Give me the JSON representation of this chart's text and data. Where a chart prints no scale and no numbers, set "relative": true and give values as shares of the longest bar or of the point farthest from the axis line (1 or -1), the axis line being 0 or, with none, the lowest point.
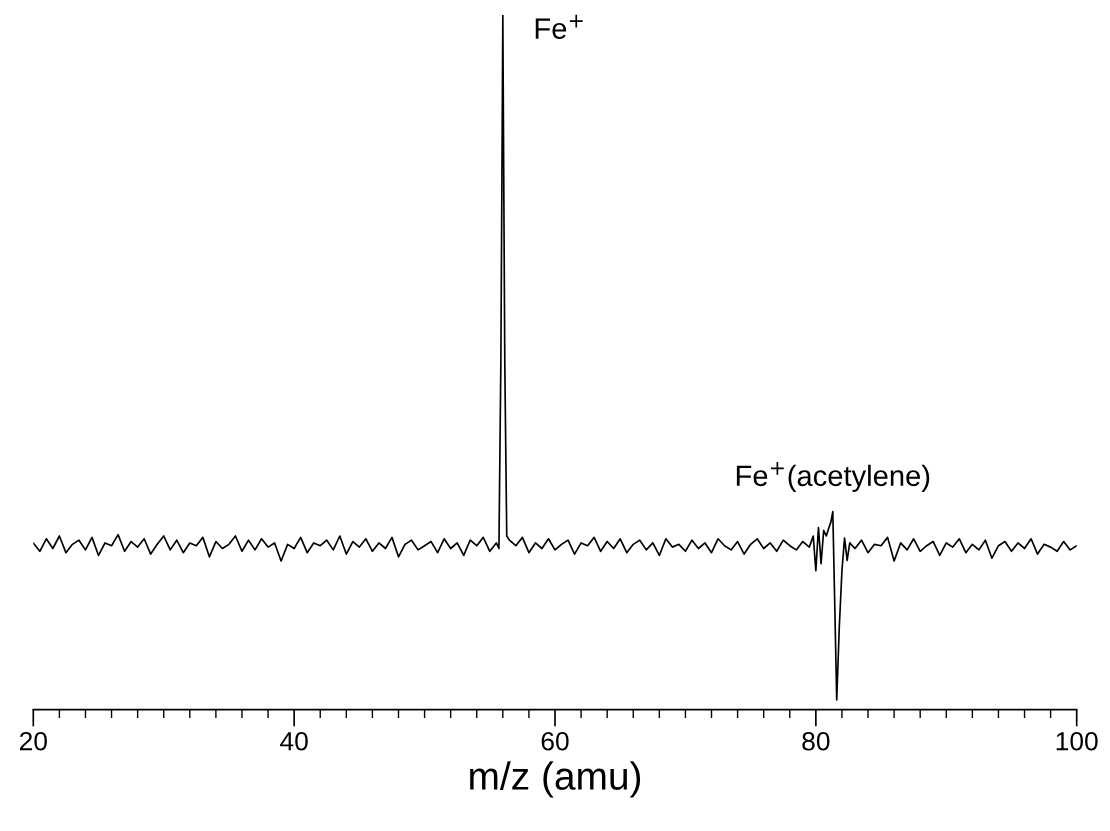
{
  "chart_data": {
    "type": "line",
    "relative": true,
    "xlabel": "m/z (amu)",
    "xlim": [
      20,
      100
    ],
    "xticks": [
      20,
      {
        "value": 22,
        "label": null
      },
      {
        "value": 24,
        "label": null
      },
      {
        "value": 26,
        "label": null
      },
      {
        "value": 28,
        "label": null
      },
      {
        "value": 30,
        "label": null
      },
      {
        "value": 32,
        "label": null
      },
      {
        "value": 34,
        "label": null
      },
      {
        "value": 36,
        "label": null
      },
      {
        "value": 38,
        "label": null
      },
      40,
      {
        "value": 42,
        "label": null
      },
      {
        "value": 44,
        "label": null
      },
      {
        "value": 46,
        "label": null
      },
      {
        "value": 48,
        "label": null
      },
      {
        "value": 50,
        "label": null
      },
      {
        "value": 52,
        "label": null
      },
      {
        "value": 54,
        "label": null
      },
      {
        "value": 56,
        "label": null
      },
      {
        "value": 58,
        "label": null
      },
      60,
      {
        "value": 62,
        "label": null
      },
      {
        "value": 64,
        "label": null
      },
      {
        "value": 66,
        "label": null
      },
      {
        "value": 68,
        "label": null
      },
      {
        "value": 70,
        "label": null
      },
      {
        "value": 72,
        "label": null
      },
      {
        "value": 74,
        "label": null
      },
      {
        "value": 76,
        "label": null
      },
      {
        "value": 78,
        "label": null
      },
      80,
      {
        "value": 82,
        "label": null
      },
      {
        "value": 84,
        "label": null
      },
      {
        "value": 86,
        "label": null
      },
      {
        "value": 88,
        "label": null
      },
      {
        "value": 90,
        "label": null
      },
      {
        "value": 92,
        "label": null
      },
      {
        "value": 94,
        "label": null
      },
      {
        "value": 96,
        "label": null
      },
      {
        "value": 98,
        "label": null
      },
      100
    ],
    "grid": false,
    "marker": "none",
    "line_style": "solid",
    "annotations": [
      {
        "text": "Fe$^{+}$",
        "x": 56,
        "y": 1
      },
      {
        "text": "Fe$^{+}$(acetylene)",
        "x": 81.3,
        "y": 0.285
      }
    ],
    "series": [
      {
        "color": "#000000",
        "x": [
          20,
          20.5,
          21,
          21.5,
          22,
          22.5,
          23,
          23.5,
          24,
          24.5,
          25,
          25.5,
          26,
          26.5,
          27,
          27.5,
          28,
          28.5,
          29,
          29.5,
          30,
          30.5,
          31,
          31.5,
          32,
          32.5,
          33,
          33.5,
          34,
          34.5,
          35,
          35.5,
          36,
          36.5,
          37,
          37.5,
          38,
          38.5,
          39,
          39.5,
          40,
          40.5,
          41,
          41.5,
          42,
          42.5,
          43,
          43.5,
          44,
          44.5,
          45,
          45.5,
          46,
          46.5,
          47,
          47.5,
          48,
          48.5,
          49,
          49.5,
          50,
          50.5,
          51,
          51.5,
          52,
          52.5,
          53,
          53.5,
          54,
          54.5,
          55,
          55.5,
          55.7,
          55.85,
          56,
          56.15,
          56.3,
          56.5,
          57,
          57.5,
          58,
          58.5,
          59,
          59.5,
          60,
          60.5,
          61,
          61.5,
          62,
          62.5,
          63,
          63.5,
          64,
          64.5,
          65,
          65.5,
          66,
          66.5,
          67,
          67.5,
          68,
          68.5,
          69,
          69.5,
          70,
          70.5,
          71,
          71.5,
          72,
          72.5,
          73,
          73.5,
          74,
          74.5,
          75,
          75.5,
          76,
          76.5,
          77,
          77.5,
          78,
          78.5,
          79,
          79.5,
          79.8,
          80,
          80.2,
          80.4,
          80.6,
          80.8,
          81,
          81.15,
          81.3,
          81.45,
          81.6,
          81.8,
          82,
          82.2,
          82.4,
          82.6,
          83,
          83.5,
          84,
          84.5,
          85,
          85.5,
          86,
          86.5,
          87,
          87.5,
          88,
          88.5,
          89,
          89.5,
          90,
          90.5,
          91,
          91.5,
          92,
          92.5,
          93,
          93.5,
          94,
          94.5,
          95,
          95.5,
          96,
          96.5,
          97,
          97.5,
          98,
          98.5,
          99,
          99.5,
          100
        ],
        "values": [
          0.24,
          0.228,
          0.246,
          0.232,
          0.25,
          0.226,
          0.238,
          0.244,
          0.23,
          0.248,
          0.222,
          0.24,
          0.236,
          0.252,
          0.228,
          0.242,
          0.234,
          0.246,
          0.224,
          0.238,
          0.25,
          0.23,
          0.244,
          0.226,
          0.24,
          0.236,
          0.248,
          0.22,
          0.242,
          0.232,
          0.238,
          0.25,
          0.228,
          0.244,
          0.23,
          0.246,
          0.234,
          0.24,
          0.214,
          0.238,
          0.232,
          0.248,
          0.226,
          0.24,
          0.236,
          0.244,
          0.23,
          0.25,
          0.224,
          0.242,
          0.234,
          0.246,
          0.228,
          0.24,
          0.232,
          0.248,
          0.22,
          0.238,
          0.244,
          0.23,
          0.236,
          0.242,
          0.226,
          0.246,
          0.232,
          0.24,
          0.222,
          0.244,
          0.236,
          0.248,
          0.228,
          0.24,
          0.232,
          0.5,
          1,
          0.5,
          0.25,
          0.244,
          0.236,
          0.248,
          0.226,
          0.24,
          0.232,
          0.246,
          0.23,
          0.238,
          0.244,
          0.224,
          0.24,
          0.236,
          0.248,
          0.228,
          0.242,
          0.232,
          0.246,
          0.226,
          0.238,
          0.244,
          0.23,
          0.24,
          0.222,
          0.246,
          0.234,
          0.238,
          0.228,
          0.244,
          0.232,
          0.24,
          0.226,
          0.246,
          0.236,
          0.23,
          0.242,
          0.224,
          0.238,
          0.246,
          0.232,
          0.24,
          0.228,
          0.244,
          0.236,
          0.23,
          0.242,
          0.234,
          0.25,
          0.2,
          0.262,
          0.21,
          0.258,
          0.25,
          0.262,
          0.27,
          0.285,
          0.15,
          0.014,
          0.12,
          0.2,
          0.247,
          0.215,
          0.24,
          0.232,
          0.244,
          0.226,
          0.238,
          0.236,
          0.248,
          0.214,
          0.24,
          0.23,
          0.246,
          0.228,
          0.236,
          0.242,
          0.222,
          0.24,
          0.234,
          0.246,
          0.226,
          0.238,
          0.23,
          0.244,
          0.218,
          0.236,
          0.242,
          0.228,
          0.24,
          0.232,
          0.246,
          0.224,
          0.238,
          0.234,
          0.228,
          0.242,
          0.23,
          0.236
        ]
      }
    ]
  }
}
